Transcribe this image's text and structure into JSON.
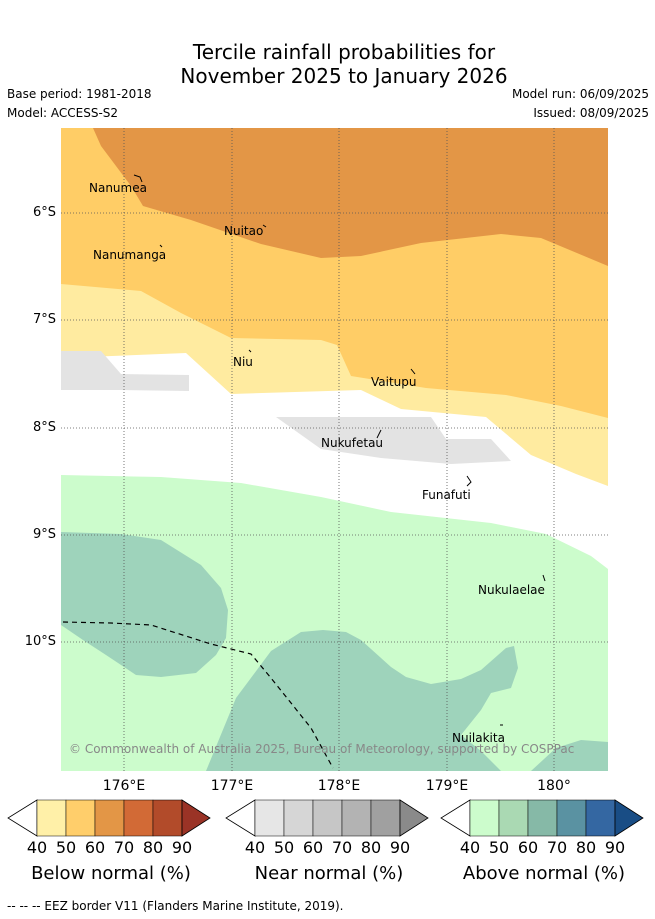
{
  "title_line1": "Tercile rainfall probabilities for",
  "title_line2": "November 2025 to January 2026",
  "base_period": "Base period: 1981-2018",
  "model": "Model: ACCESS-S2",
  "model_run": "Model run: 06/09/2025",
  "issued": "Issued: 08/09/2025",
  "lat_labels": [
    "6°S",
    "7°S",
    "8°S",
    "9°S",
    "10°S"
  ],
  "lon_labels": [
    "176°E",
    "177°E",
    "178°E",
    "179°E",
    "180°"
  ],
  "places": [
    "Nanumea",
    "Nuitao",
    "Nanumanga",
    "Niu",
    "Vaitupu",
    "Nukufetau",
    "Funafuti",
    "Nukulaelae",
    "Nuilakita"
  ],
  "copyright": "© Commonwealth of Australia 2025, Bureau of Meteorology, supported by COSPPac",
  "colorbar_ticks": [
    "40",
    "50",
    "60",
    "70",
    "80",
    "90"
  ],
  "colorbars": [
    {
      "title": "Below normal (%)",
      "colors": [
        "#fff0a8",
        "#ffce6b",
        "#e39646",
        "#d26a36",
        "#b24b2a",
        "#9a3326"
      ]
    },
    {
      "title": "Near normal (%)",
      "colors": [
        "#e6e6e6",
        "#d6d6d6",
        "#c6c6c6",
        "#b3b3b3",
        "#a0a0a0",
        "#8a8a8a"
      ]
    },
    {
      "title": "Above normal (%)",
      "colors": [
        "#ccfccc",
        "#aad9b3",
        "#86b9a7",
        "#5a92a2",
        "#3467a2",
        "#194d85"
      ]
    }
  ],
  "map_colors": {
    "below_40": "#ffeba0",
    "below_50": "#ffcd66",
    "below_60": "#e39646",
    "near_40": "#e3e3e3",
    "above_40": "#ccfccc",
    "above_50": "#9ed3bb"
  },
  "footer": "--  --  -- EEZ border V11 (Flanders Marine Institute, 2019)."
}
